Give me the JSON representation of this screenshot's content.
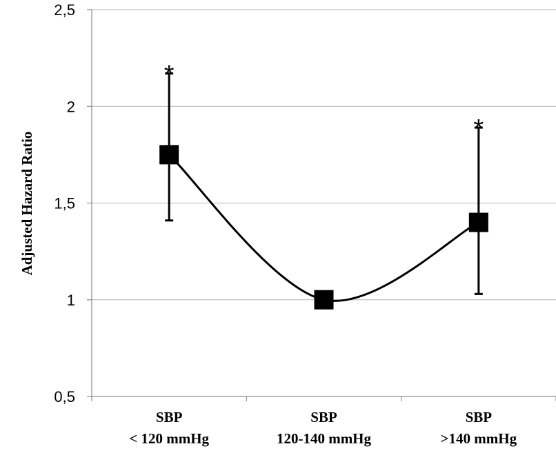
{
  "chart_data": {
    "type": "line",
    "title": "",
    "xlabel": "",
    "ylabel": "Adjusted Hazard Ratio",
    "ylim": [
      0.5,
      2.5
    ],
    "yticks": [
      {
        "value": 0.5,
        "label": "0,5"
      },
      {
        "value": 1.0,
        "label": "1"
      },
      {
        "value": 1.5,
        "label": "1,5"
      },
      {
        "value": 2.0,
        "label": "2"
      },
      {
        "value": 2.5,
        "label": "2,5"
      }
    ],
    "grid": true,
    "categories": [
      {
        "line1": "SBP",
        "line2": "< 120 mmHg"
      },
      {
        "line1": "SBP",
        "line2": "120-140 mmHg"
      },
      {
        "line1": "SBP",
        "line2": ">140 mmHg"
      }
    ],
    "series": [
      {
        "values": [
          1.75,
          1.0,
          1.4
        ],
        "error_low": [
          1.41,
          null,
          1.03
        ],
        "error_high": [
          2.17,
          null,
          1.89
        ],
        "annotations": [
          "*",
          "",
          "*"
        ],
        "marker": "square",
        "color": "#000000",
        "smoothed": true
      }
    ]
  }
}
